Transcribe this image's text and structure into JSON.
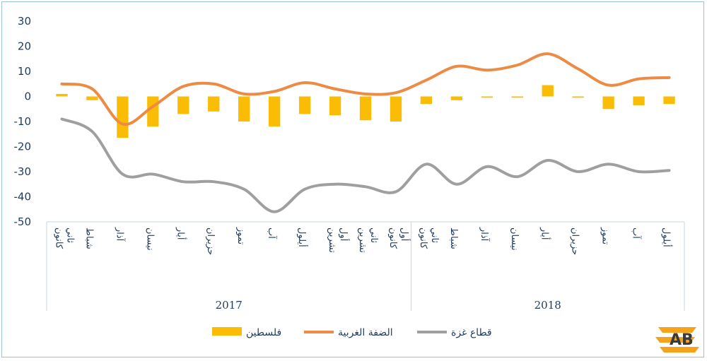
{
  "chart_data": {
    "type": "bar-line",
    "ylim": [
      -50,
      30
    ],
    "yticks": [
      30,
      20,
      10,
      0,
      -10,
      -20,
      -30,
      -40,
      -50
    ],
    "categories": [
      "كانون ثاني",
      "شباط",
      "آذار",
      "نيسان",
      "أيار",
      "حزيران",
      "تموز",
      "آب",
      "أيلول",
      "تشرين أول",
      "تشرين ثاني",
      "كانون أول",
      "كانون ثاني",
      "شباط",
      "آذار",
      "نيسان",
      "أيار",
      "حزيران",
      "تموز",
      "آب",
      "أيلول"
    ],
    "years": [
      {
        "label": "2017",
        "span": 12
      },
      {
        "label": "2018",
        "span": 9
      }
    ],
    "series": [
      {
        "name": "فلسطين",
        "type": "bar",
        "color": "#fbbc05",
        "values": [
          1,
          -1.5,
          -16.5,
          -12,
          -7,
          -6,
          -10,
          -12,
          -7,
          -7.5,
          -9.5,
          -10,
          -3,
          -1.5,
          -0.5,
          -0.5,
          4.5,
          -0.5,
          -5,
          -3.5,
          -3
        ]
      },
      {
        "name": "الضفة الغربية",
        "type": "line",
        "color": "#ed8b45",
        "values": [
          5,
          3,
          -11,
          -4,
          4,
          5,
          1,
          2,
          5.5,
          3,
          1,
          1.5,
          6.5,
          12,
          10.5,
          12.5,
          17,
          11,
          4.5,
          7,
          7.5
        ]
      },
      {
        "name": "قطاع غزة",
        "type": "line",
        "color": "#9f9f9f",
        "values": [
          -9,
          -14,
          -31,
          -31,
          -34,
          -34,
          -37,
          -46,
          -37,
          -35,
          -36,
          -38,
          -27,
          -35,
          -28,
          -32,
          -25.5,
          -30,
          -27,
          -30,
          -29.5
        ]
      }
    ],
    "legend_position": "bottom",
    "grid": false
  },
  "logo": {
    "text": "AB",
    "color": "#f5a31a"
  }
}
